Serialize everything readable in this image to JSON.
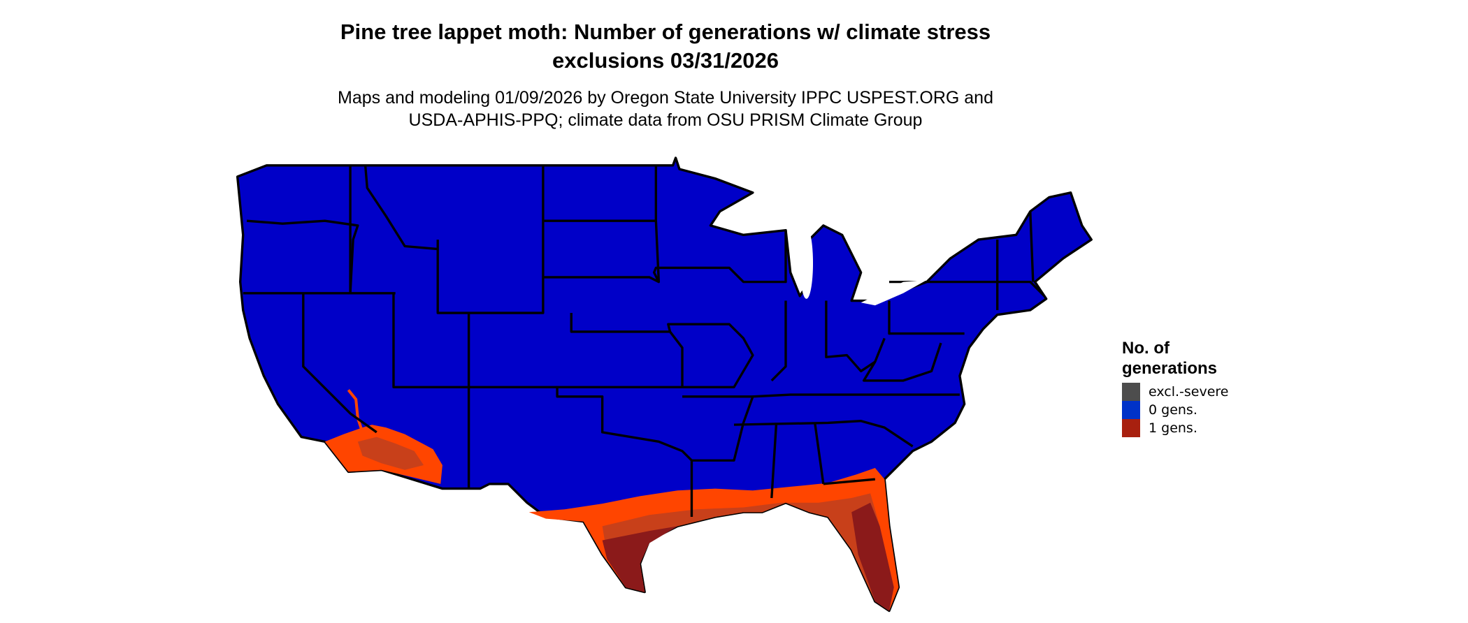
{
  "title": {
    "line1": "Pine tree lappet moth: Number of generations w/ climate stress",
    "line2": "exclusions 03/31/2026"
  },
  "subtitle": {
    "line1": "Maps and modeling 01/09/2026 by Oregon State University IPPC USPEST.ORG and",
    "line2": "USDA-APHIS-PPQ; climate data from OSU PRISM Climate Group"
  },
  "legend": {
    "title_line1": "No. of",
    "title_line2": "generations",
    "items": [
      {
        "label": "excl.-severe",
        "color": "#4d4d4d"
      },
      {
        "label": "0 gens.",
        "color": "#0032c8"
      },
      {
        "label": "1 gens.",
        "color": "#a8200f"
      }
    ]
  },
  "map": {
    "region": "conterminous United States",
    "colors": {
      "zero_gens_fill": "#0000c8",
      "one_gen_low": "#ff4500",
      "one_gen_mid": "#c8401a",
      "one_gen_high": "#8b1a1a",
      "state_borders": "#000000"
    }
  }
}
